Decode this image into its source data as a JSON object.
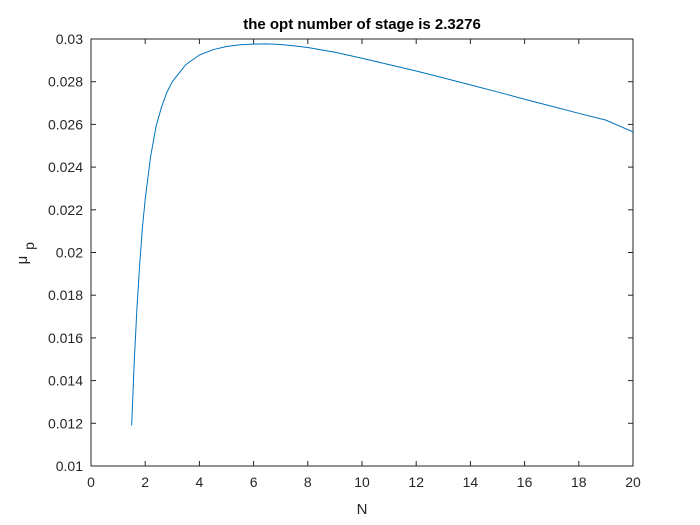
{
  "chart_data": {
    "type": "line",
    "title": "the opt number of stage is 2.3276",
    "xlabel": "N",
    "ylabel_main": "μ",
    "ylabel_sub": "p",
    "xlim": [
      0,
      20
    ],
    "ylim": [
      0.01,
      0.03
    ],
    "xticks": [
      0,
      2,
      4,
      6,
      8,
      10,
      12,
      14,
      16,
      18,
      20
    ],
    "yticks": [
      0.01,
      0.012,
      0.014,
      0.016,
      0.018,
      0.02,
      0.022,
      0.024,
      0.026,
      0.028,
      0.03
    ],
    "xtick_labels": [
      "0",
      "2",
      "4",
      "6",
      "8",
      "10",
      "12",
      "14",
      "16",
      "18",
      "20"
    ],
    "ytick_labels": [
      "0.01",
      "0.012",
      "0.014",
      "0.016",
      "0.018",
      "0.02",
      "0.022",
      "0.024",
      "0.026",
      "0.028",
      "0.03"
    ],
    "grid": false,
    "line_color": "#0072BD",
    "series": [
      {
        "x": [
          1.5,
          1.6,
          1.7,
          1.8,
          1.9,
          2.0,
          2.2,
          2.4,
          2.6,
          2.8,
          3.0,
          3.5,
          4.0,
          4.5,
          5.0,
          5.5,
          6.0,
          6.5,
          7.0,
          7.5,
          8.0,
          9.0,
          10.0,
          11.0,
          12.0,
          13.0,
          14.0,
          15.0,
          16.0,
          17.0,
          18.0,
          19.0,
          20.0
        ],
        "y": [
          0.0119,
          0.015,
          0.0175,
          0.0195,
          0.0212,
          0.0225,
          0.0245,
          0.0259,
          0.0268,
          0.0275,
          0.028,
          0.0288,
          0.02925,
          0.0295,
          0.02965,
          0.02973,
          0.02976,
          0.02977,
          0.02974,
          0.02968,
          0.0296,
          0.02938,
          0.0291,
          0.0288,
          0.0285,
          0.02818,
          0.02785,
          0.02752,
          0.02718,
          0.02685,
          0.02652,
          0.0262,
          0.02565
        ]
      }
    ]
  }
}
